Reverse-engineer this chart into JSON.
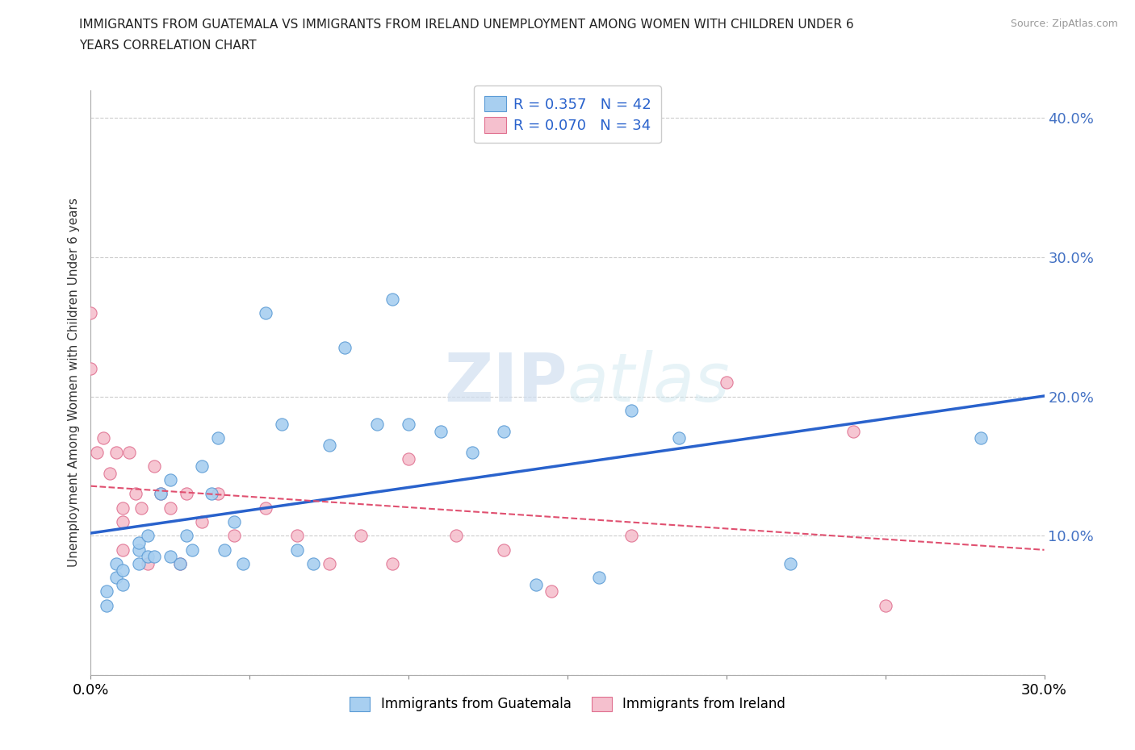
{
  "title_line1": "IMMIGRANTS FROM GUATEMALA VS IMMIGRANTS FROM IRELAND UNEMPLOYMENT AMONG WOMEN WITH CHILDREN UNDER 6",
  "title_line2": "YEARS CORRELATION CHART",
  "source": "Source: ZipAtlas.com",
  "ylabel": "Unemployment Among Women with Children Under 6 years",
  "xlim": [
    0.0,
    0.3
  ],
  "ylim": [
    0.0,
    0.42
  ],
  "xticks": [
    0.0,
    0.05,
    0.1,
    0.15,
    0.2,
    0.25,
    0.3
  ],
  "yticks": [
    0.0,
    0.1,
    0.2,
    0.3,
    0.4
  ],
  "guatemala_color": "#a8cff0",
  "ireland_color": "#f5c0ce",
  "guatemala_edge": "#5b9bd5",
  "ireland_edge": "#e07090",
  "guatemala_R": 0.357,
  "guatemala_N": 42,
  "ireland_R": 0.07,
  "ireland_N": 34,
  "guatemala_x": [
    0.005,
    0.005,
    0.008,
    0.008,
    0.01,
    0.01,
    0.015,
    0.015,
    0.015,
    0.018,
    0.018,
    0.02,
    0.022,
    0.025,
    0.025,
    0.028,
    0.03,
    0.032,
    0.035,
    0.038,
    0.04,
    0.042,
    0.045,
    0.048,
    0.055,
    0.06,
    0.065,
    0.07,
    0.075,
    0.08,
    0.09,
    0.095,
    0.1,
    0.11,
    0.12,
    0.13,
    0.14,
    0.16,
    0.17,
    0.185,
    0.22,
    0.28
  ],
  "guatemala_y": [
    0.05,
    0.06,
    0.07,
    0.08,
    0.065,
    0.075,
    0.08,
    0.09,
    0.095,
    0.085,
    0.1,
    0.085,
    0.13,
    0.14,
    0.085,
    0.08,
    0.1,
    0.09,
    0.15,
    0.13,
    0.17,
    0.09,
    0.11,
    0.08,
    0.26,
    0.18,
    0.09,
    0.08,
    0.165,
    0.235,
    0.18,
    0.27,
    0.18,
    0.175,
    0.16,
    0.175,
    0.065,
    0.07,
    0.19,
    0.17,
    0.08,
    0.17
  ],
  "ireland_x": [
    0.0,
    0.0,
    0.002,
    0.004,
    0.006,
    0.008,
    0.01,
    0.01,
    0.01,
    0.012,
    0.014,
    0.016,
    0.018,
    0.02,
    0.022,
    0.025,
    0.028,
    0.03,
    0.035,
    0.04,
    0.045,
    0.055,
    0.065,
    0.075,
    0.085,
    0.095,
    0.1,
    0.115,
    0.13,
    0.145,
    0.17,
    0.2,
    0.24,
    0.25
  ],
  "ireland_y": [
    0.26,
    0.22,
    0.16,
    0.17,
    0.145,
    0.16,
    0.12,
    0.11,
    0.09,
    0.16,
    0.13,
    0.12,
    0.08,
    0.15,
    0.13,
    0.12,
    0.08,
    0.13,
    0.11,
    0.13,
    0.1,
    0.12,
    0.1,
    0.08,
    0.1,
    0.08,
    0.155,
    0.1,
    0.09,
    0.06,
    0.1,
    0.21,
    0.175,
    0.05
  ],
  "watermark_zip": "ZIP",
  "watermark_atlas": "atlas",
  "grid_color": "#cccccc",
  "line_blue": "#2962cc",
  "line_pink_color": "#e05070",
  "right_label_color": "#4472c4"
}
